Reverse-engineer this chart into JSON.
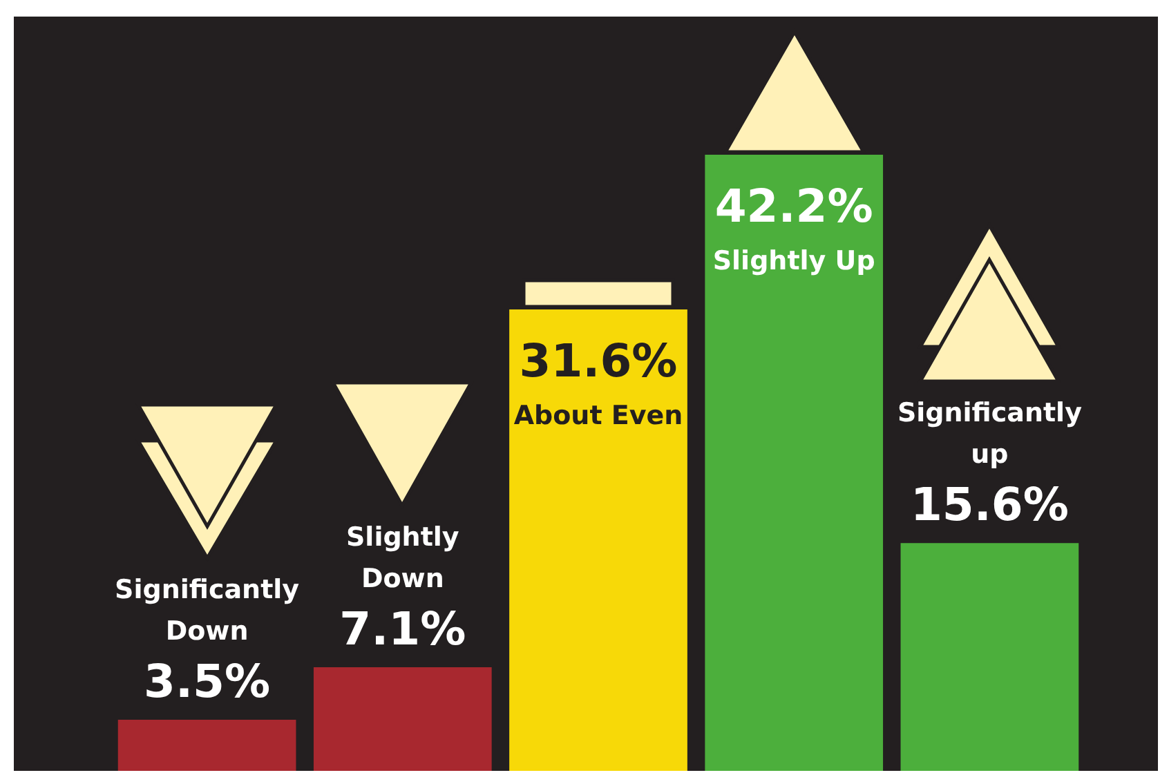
{
  "chart_data": {
    "type": "bar",
    "categories": [
      "Significantly Down",
      "Slightly Down",
      "About Even",
      "Slightly Up",
      "Significantly up"
    ],
    "values": [
      3.5,
      7.1,
      31.6,
      42.2,
      15.6
    ],
    "colors": [
      "#a8282f",
      "#a8282f",
      "#f7d908",
      "#4caf3c",
      "#4caf3c"
    ],
    "value_labels": [
      "3.5%",
      "7.1%",
      "31.6%",
      "42.2%",
      "15.6%"
    ],
    "legend": false
  }
}
